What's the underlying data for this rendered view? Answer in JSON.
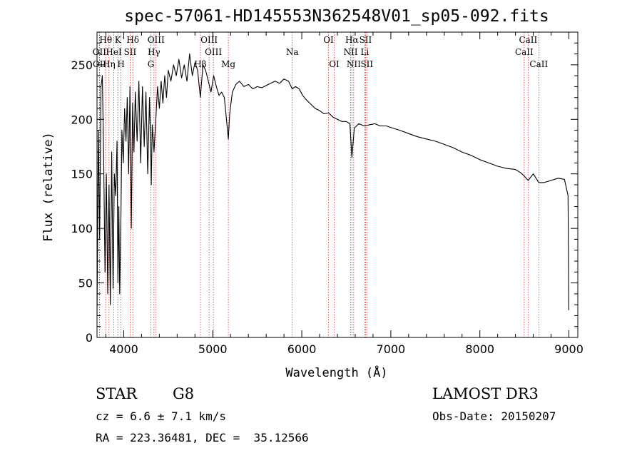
{
  "chart_data": {
    "type": "line",
    "title": "spec-57061-HD145553N362548V01_sp05-092.fits",
    "xlabel": "Wavelength (Å)",
    "ylabel": "Flux (relative)",
    "xlim": [
      3700,
      9100
    ],
    "ylim": [
      0,
      280
    ],
    "xticks": [
      4000,
      5000,
      6000,
      7000,
      8000,
      9000
    ],
    "xtick_labels": [
      "4000",
      "5000",
      "6000",
      "7000",
      "8000",
      "9000"
    ],
    "yticks": [
      0,
      50,
      100,
      150,
      200,
      250
    ],
    "ytick_labels": [
      "0",
      "50",
      "100",
      "150",
      "200",
      "250"
    ],
    "grid": false,
    "series": [
      {
        "name": "spectrum",
        "x": [
          3700,
          3715,
          3730,
          3745,
          3760,
          3775,
          3790,
          3805,
          3820,
          3835,
          3850,
          3865,
          3880,
          3895,
          3910,
          3925,
          3935,
          3945,
          3955,
          3968,
          3980,
          3995,
          4010,
          4025,
          4040,
          4055,
          4070,
          4085,
          4100,
          4115,
          4130,
          4150,
          4170,
          4190,
          4210,
          4230,
          4250,
          4270,
          4290,
          4300,
          4310,
          4320,
          4340,
          4360,
          4380,
          4400,
          4420,
          4440,
          4460,
          4480,
          4500,
          4530,
          4560,
          4590,
          4620,
          4650,
          4680,
          4710,
          4740,
          4770,
          4800,
          4830,
          4861,
          4890,
          4920,
          4950,
          4980,
          5010,
          5040,
          5070,
          5100,
          5130,
          5160,
          5175,
          5190,
          5220,
          5260,
          5300,
          5350,
          5400,
          5450,
          5500,
          5550,
          5600,
          5650,
          5700,
          5750,
          5800,
          5850,
          5893,
          5930,
          5970,
          6010,
          6050,
          6100,
          6150,
          6200,
          6250,
          6300,
          6350,
          6400,
          6450,
          6500,
          6540,
          6563,
          6590,
          6640,
          6700,
          6760,
          6820,
          6880,
          6950,
          7020,
          7100,
          7200,
          7300,
          7400,
          7500,
          7600,
          7700,
          7800,
          7900,
          8000,
          8100,
          8200,
          8300,
          8400,
          8460,
          8498,
          8542,
          8600,
          8662,
          8720,
          8800,
          8880,
          8950,
          8990,
          8995,
          8999
        ],
        "values": [
          20,
          190,
          90,
          230,
          240,
          160,
          60,
          150,
          40,
          140,
          30,
          170,
          45,
          150,
          130,
          180,
          50,
          120,
          40,
          110,
          190,
          160,
          210,
          180,
          220,
          150,
          230,
          100,
          215,
          170,
          225,
          180,
          235,
          160,
          230,
          175,
          225,
          150,
          220,
          185,
          140,
          195,
          170,
          200,
          230,
          210,
          235,
          215,
          240,
          220,
          245,
          235,
          250,
          240,
          255,
          238,
          250,
          235,
          260,
          240,
          252,
          245,
          220,
          250,
          245,
          235,
          225,
          240,
          230,
          222,
          225,
          220,
          195,
          182,
          205,
          225,
          232,
          235,
          230,
          232,
          228,
          230,
          229,
          231,
          233,
          235,
          233,
          237,
          235,
          228,
          230,
          228,
          222,
          218,
          214,
          210,
          208,
          205,
          206,
          202,
          200,
          198,
          198,
          196,
          165,
          192,
          196,
          194,
          195,
          196,
          194,
          194,
          192,
          190,
          187,
          184,
          182,
          180,
          177,
          174,
          170,
          167,
          163,
          160,
          157,
          155,
          154,
          151,
          148,
          144,
          150,
          142,
          142,
          144,
          146,
          145,
          130,
          80,
          25
        ]
      }
    ],
    "lines": [
      {
        "label": "Hθ",
        "x": 3798,
        "row": 0
      },
      {
        "label": "OII",
        "x": 3727,
        "row": 1
      },
      {
        "label": "OII",
        "x": 3729,
        "row": 2
      },
      {
        "label": "K",
        "x": 3934,
        "row": 0
      },
      {
        "label": "HeI",
        "x": 3889,
        "row": 1
      },
      {
        "label": "Hη",
        "x": 3835,
        "row": 2
      },
      {
        "label": "Hδ",
        "x": 4102,
        "row": 0
      },
      {
        "label": "SII",
        "x": 4072,
        "row": 1
      },
      {
        "label": "H",
        "x": 3969,
        "row": 2
      },
      {
        "label": "OIII",
        "x": 4363,
        "row": 0
      },
      {
        "label": "Hγ",
        "x": 4340,
        "row": 1
      },
      {
        "label": "G",
        "x": 4305,
        "row": 2
      },
      {
        "label": "Hβ",
        "x": 4861,
        "row": 3
      },
      {
        "label": "OIII",
        "x": 4959,
        "row": 0
      },
      {
        "label": "OIII",
        "x": 5007,
        "row": 1
      },
      {
        "label": "Mg",
        "x": 5175,
        "row": 3
      },
      {
        "label": "Na",
        "x": 5893,
        "row": 1
      },
      {
        "label": "OI",
        "x": 6300,
        "row": 0
      },
      {
        "label": "OI",
        "x": 6364,
        "row": 2
      },
      {
        "label": "Hα",
        "x": 6563,
        "row": 0
      },
      {
        "label": "NII",
        "x": 6548,
        "row": 1
      },
      {
        "label": "NII",
        "x": 6583,
        "row": 2
      },
      {
        "label": "SII",
        "x": 6716,
        "row": 0
      },
      {
        "label": "Li",
        "x": 6708,
        "row": 1
      },
      {
        "label": "SII",
        "x": 6731,
        "row": 2
      },
      {
        "label": "CaII",
        "x": 8542,
        "row": 0
      },
      {
        "label": "CaII",
        "x": 8498,
        "row": 1
      },
      {
        "label": "CaII",
        "x": 8662,
        "row": 2
      }
    ]
  },
  "info": {
    "object_type": "STAR",
    "subclass": "G8",
    "survey": "LAMOST DR3",
    "cz": "cz = 6.6 ± 7.1 km/s",
    "obs_date": "Obs-Date: 20150207",
    "coords": "RA = 223.36481, DEC =  35.12566"
  },
  "colors": {
    "spectrum": "#000000",
    "line_marker": "#d32f2f",
    "axes": "#000000"
  }
}
